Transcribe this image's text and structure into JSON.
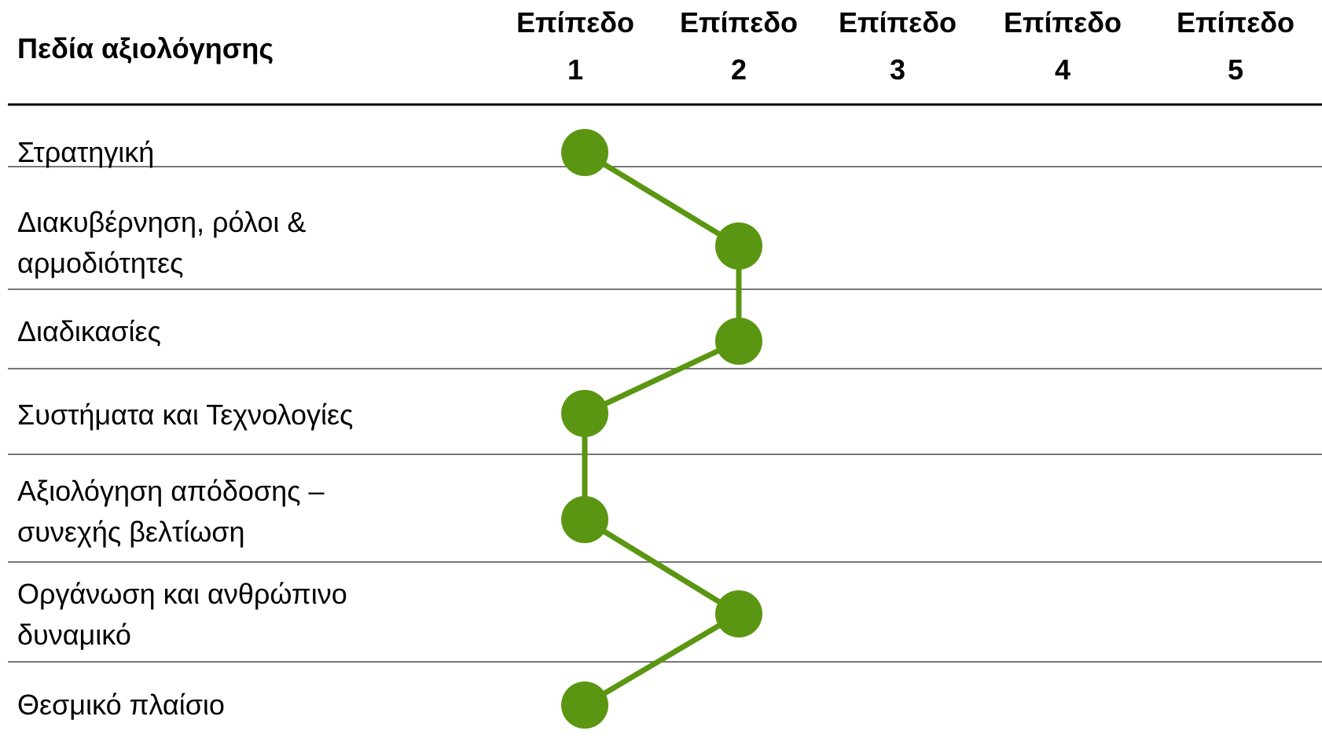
{
  "chart_data": {
    "type": "line",
    "category_header": "Πεδία αξιολόγησης",
    "level_columns": [
      {
        "line1": "Επίπεδο",
        "line2": "1"
      },
      {
        "line1": "Επίπεδο",
        "line2": "2"
      },
      {
        "line1": "Επίπεδο",
        "line2": "3"
      },
      {
        "line1": "Επίπεδο",
        "line2": "4"
      },
      {
        "line1": "Επίπεδο",
        "line2": "5"
      }
    ],
    "categories": [
      [
        "Στρατηγική"
      ],
      [
        "Διακυβέρνηση, ρόλοι &",
        "αρμοδιότητες"
      ],
      [
        "Διαδικασίες"
      ],
      [
        "Συστήματα και Τεχνολογίες"
      ],
      [
        "Αξιολόγηση απόδοσης –",
        "συνεχής βελτίωση"
      ],
      [
        "Οργάνωση και ανθρώπινο",
        "δυναμικό"
      ],
      [
        "Θεσμικό πλαίσιο"
      ]
    ],
    "values": [
      1,
      2,
      2,
      1,
      1,
      2,
      1
    ],
    "xlim": [
      1,
      5
    ],
    "grid": "horizontal",
    "marker_color": "#5b9612",
    "line_color": "#5b9612"
  }
}
